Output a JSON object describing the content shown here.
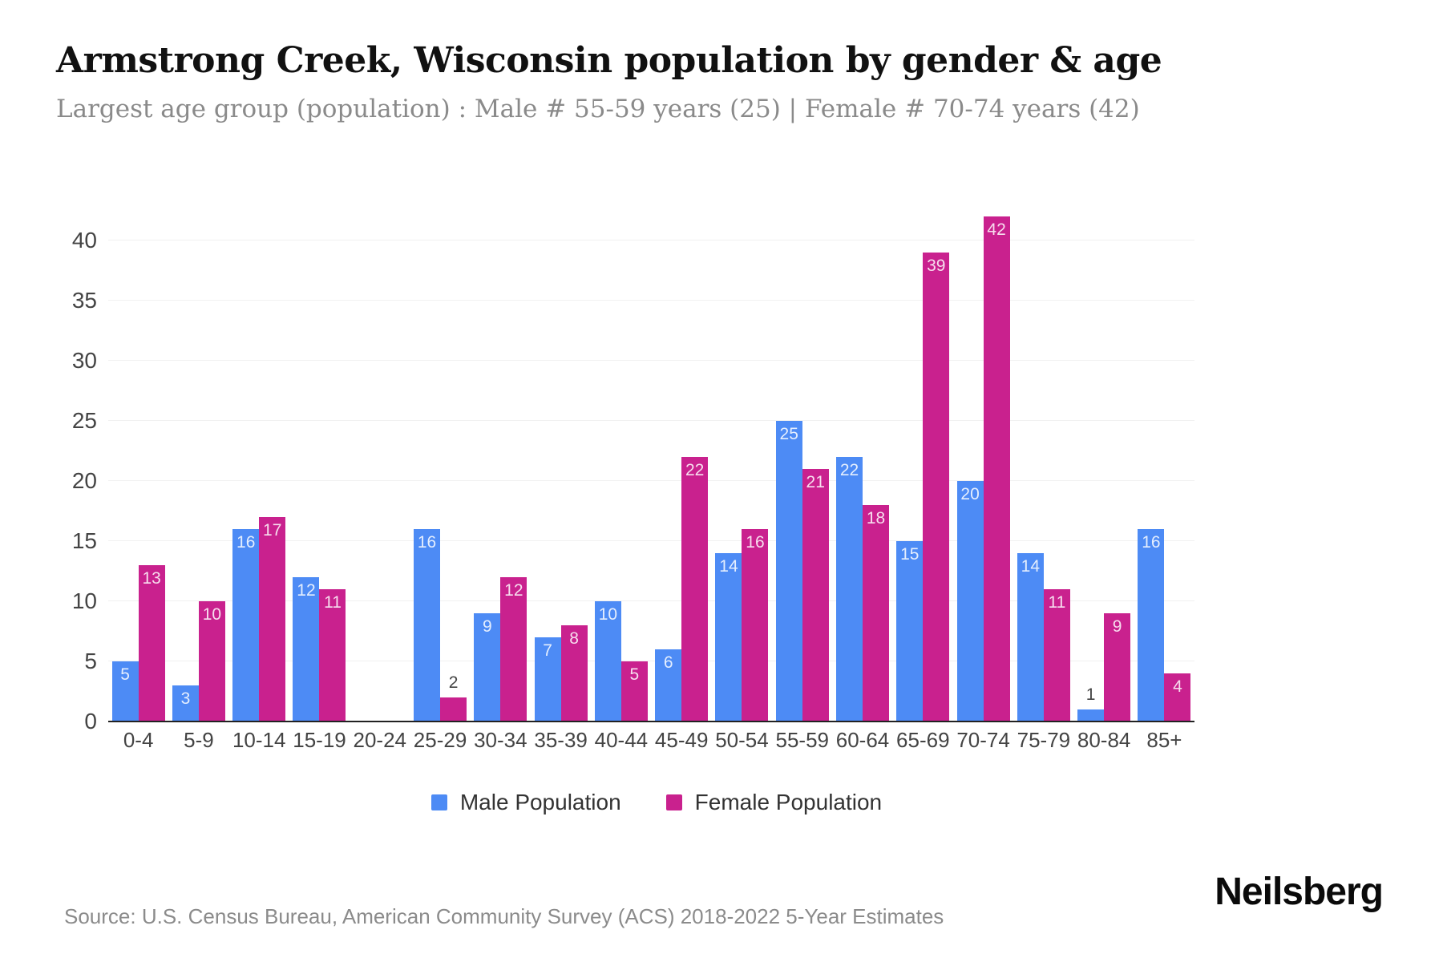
{
  "header": {
    "title": "Armstrong Creek, Wisconsin population by gender & age",
    "subtitle": "Largest age group (population) : Male # 55-59 years (25) | Female # 70-74 years (42)"
  },
  "chart_data": {
    "type": "bar",
    "title": "Armstrong Creek, Wisconsin population by gender & age",
    "categories": [
      "0-4",
      "5-9",
      "10-14",
      "15-19",
      "20-24",
      "25-29",
      "30-34",
      "35-39",
      "40-44",
      "45-49",
      "50-54",
      "55-59",
      "60-64",
      "65-69",
      "70-74",
      "75-79",
      "80-84",
      "85+"
    ],
    "series": [
      {
        "name": "Male Population",
        "color": "#4d8bf5",
        "values": [
          5,
          3,
          16,
          12,
          0,
          16,
          9,
          7,
          10,
          6,
          14,
          25,
          22,
          15,
          20,
          14,
          1,
          16
        ]
      },
      {
        "name": "Female Population",
        "color": "#c9218e",
        "values": [
          13,
          10,
          17,
          11,
          0,
          2,
          12,
          8,
          5,
          22,
          16,
          21,
          18,
          39,
          42,
          11,
          9,
          4
        ]
      }
    ],
    "xlabel": "",
    "ylabel": "",
    "yticks": [
      0,
      5,
      10,
      15,
      20,
      25,
      30,
      35,
      40
    ],
    "ylim": [
      0,
      43
    ],
    "grid": true,
    "legend_position": "bottom"
  },
  "footer": {
    "source": "Source: U.S. Census Bureau, American Community Survey (ACS) 2018-2022 5-Year Estimates",
    "brand": "Neilsberg"
  }
}
